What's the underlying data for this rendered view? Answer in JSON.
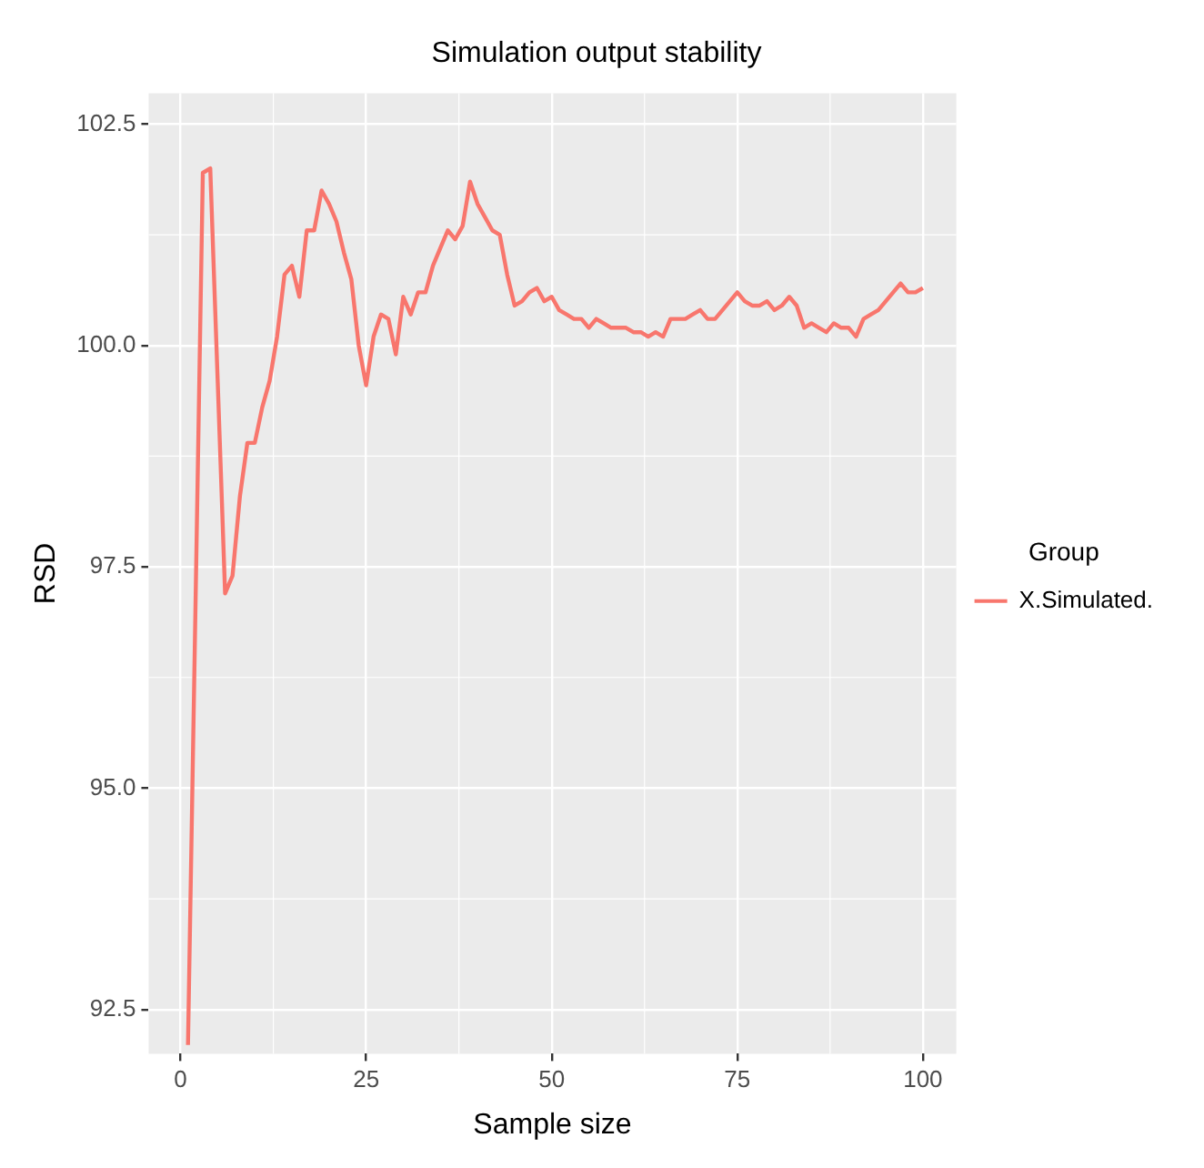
{
  "chart_data": {
    "type": "line",
    "title": "Simulation output stability",
    "xlabel": "Sample size",
    "ylabel": "RSD",
    "legend_title": "Group",
    "x": [
      1,
      2,
      3,
      4,
      5,
      6,
      7,
      8,
      9,
      10,
      11,
      12,
      13,
      14,
      15,
      16,
      17,
      18,
      19,
      20,
      21,
      22,
      23,
      24,
      25,
      26,
      27,
      28,
      29,
      30,
      31,
      32,
      33,
      34,
      35,
      36,
      37,
      38,
      39,
      40,
      41,
      42,
      43,
      44,
      45,
      46,
      47,
      48,
      49,
      50,
      51,
      52,
      53,
      54,
      55,
      56,
      57,
      58,
      59,
      60,
      61,
      62,
      63,
      64,
      65,
      66,
      67,
      68,
      69,
      70,
      71,
      72,
      73,
      74,
      75,
      76,
      77,
      78,
      79,
      80,
      81,
      82,
      83,
      84,
      85,
      86,
      87,
      88,
      89,
      90,
      91,
      92,
      93,
      94,
      95,
      96,
      97,
      98,
      99,
      100
    ],
    "series": [
      {
        "name": "X.Simulated.",
        "color": "#f8766d",
        "values": [
          92.1,
          97.0,
          101.95,
          102.0,
          99.6,
          97.2,
          97.4,
          98.3,
          98.9,
          98.9,
          99.3,
          99.6,
          100.1,
          100.8,
          100.9,
          100.55,
          101.3,
          101.3,
          101.75,
          101.6,
          101.4,
          101.05,
          100.75,
          100.0,
          99.55,
          100.1,
          100.35,
          100.3,
          99.9,
          100.55,
          100.35,
          100.6,
          100.6,
          100.9,
          101.1,
          101.3,
          101.2,
          101.35,
          101.85,
          101.6,
          101.45,
          101.3,
          101.25,
          100.8,
          100.45,
          100.5,
          100.6,
          100.65,
          100.5,
          100.55,
          100.4,
          100.35,
          100.3,
          100.3,
          100.2,
          100.3,
          100.25,
          100.2,
          100.2,
          100.2,
          100.15,
          100.15,
          100.1,
          100.15,
          100.1,
          100.3,
          100.3,
          100.3,
          100.35,
          100.4,
          100.3,
          100.3,
          100.4,
          100.5,
          100.6,
          100.5,
          100.45,
          100.45,
          100.5,
          100.4,
          100.45,
          100.55,
          100.45,
          100.2,
          100.25,
          100.2,
          100.15,
          100.25,
          100.2,
          100.2,
          100.1,
          100.3,
          100.35,
          100.4,
          100.5,
          100.6,
          100.7,
          100.6,
          100.6,
          100.65
        ]
      }
    ],
    "xlim": [
      -4.3,
      104.5
    ],
    "xticks": [
      0,
      25,
      50,
      75,
      100
    ],
    "ylim": [
      92.0,
      102.85
    ],
    "yticks": [
      {
        "value": 92.5,
        "label": "92.5"
      },
      {
        "value": 95,
        "label": "95.0"
      },
      {
        "value": 97.5,
        "label": "97.5"
      },
      {
        "value": 100,
        "label": "100.0"
      },
      {
        "value": 102.5,
        "label": "102.5"
      }
    ],
    "grid": true,
    "legend": "right",
    "marker": "none",
    "line_style": "solid"
  }
}
